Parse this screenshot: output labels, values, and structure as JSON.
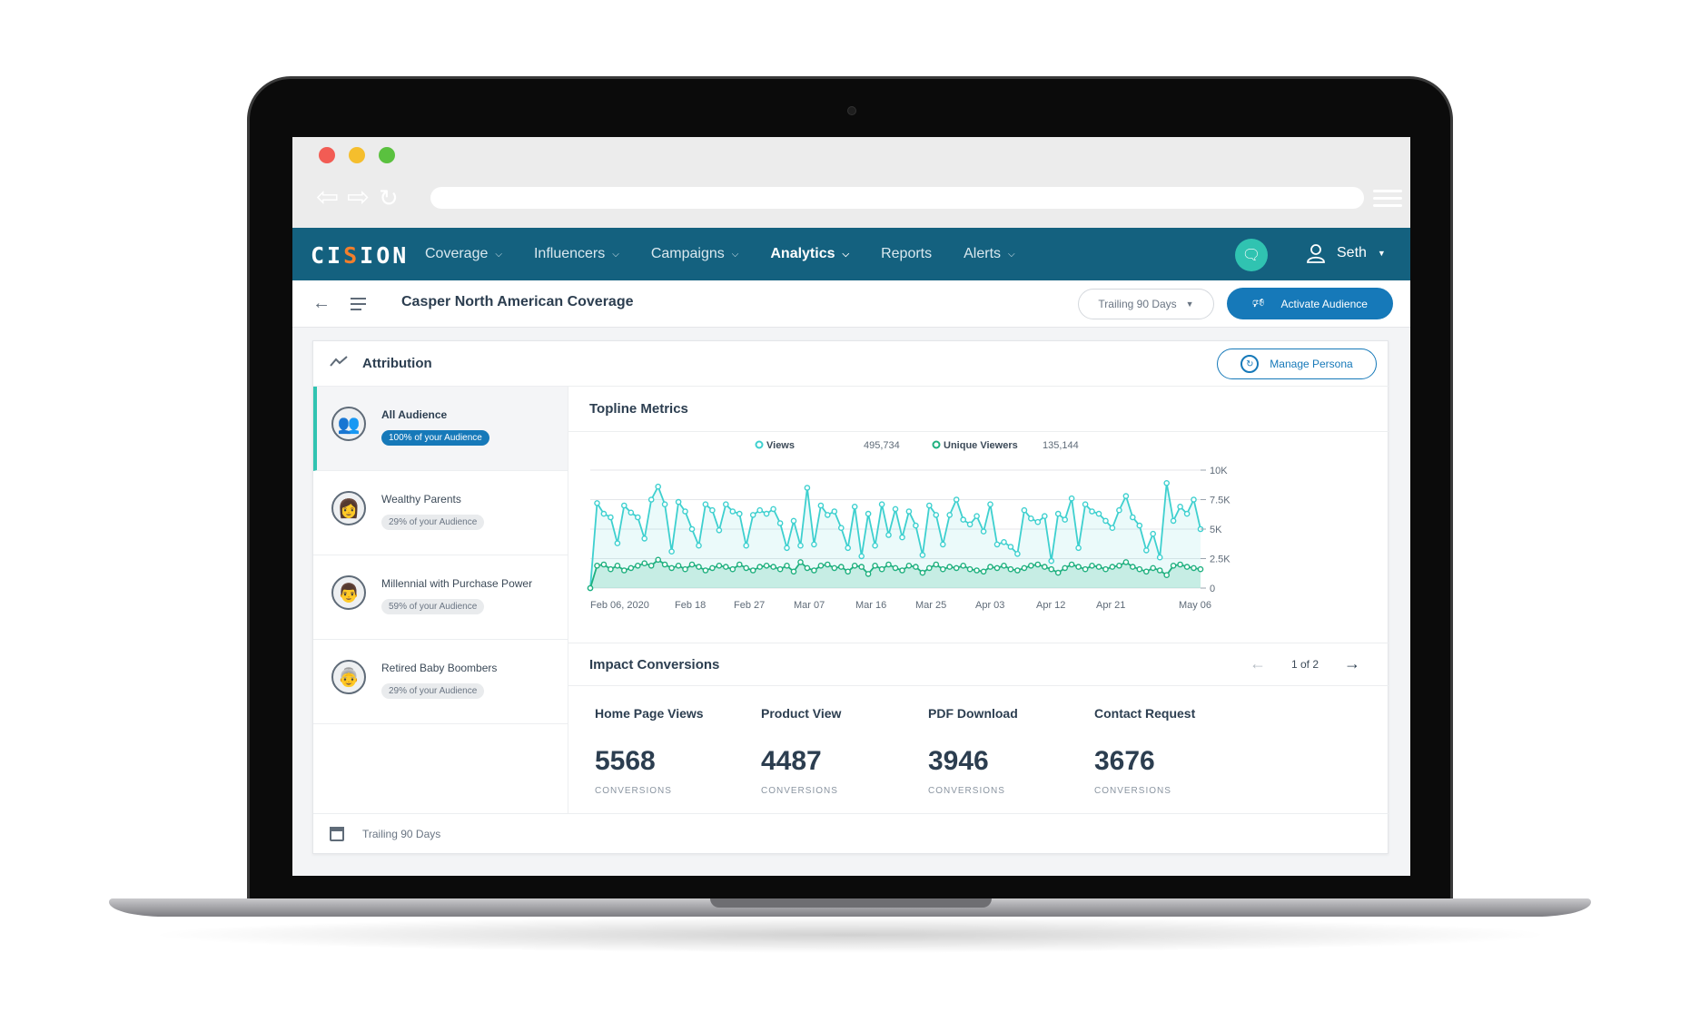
{
  "app": {
    "logo": {
      "part1": "CI",
      "part2": "S",
      "part3": "ION"
    },
    "nav": [
      {
        "label": "Coverage",
        "has_menu": true
      },
      {
        "label": "Influencers",
        "has_menu": true
      },
      {
        "label": "Campaigns",
        "has_menu": true
      },
      {
        "label": "Analytics",
        "has_menu": true,
        "active": true
      },
      {
        "label": "Reports",
        "has_menu": false
      },
      {
        "label": "Alerts",
        "has_menu": true
      }
    ],
    "user_name": "Seth",
    "colors": {
      "topbar": "#14617f",
      "accent": "#30c3b1",
      "primary": "#1679b9",
      "logo_accent": "#f37f2c"
    }
  },
  "subheader": {
    "title": "Casper North American Coverage",
    "range": "Trailing 90 Days",
    "activate_label": "Activate Audience"
  },
  "attribution": {
    "title": "Attribution",
    "manage_label": "Manage Persona",
    "audiences": [
      {
        "name": "All Audience",
        "share": "100% of your Audience",
        "active": true
      },
      {
        "name": "Wealthy Parents",
        "share": "29% of your Audience"
      },
      {
        "name": "Millennial with Purchase Power",
        "share": "59% of your Audience"
      },
      {
        "name": "Retired Baby Boombers",
        "share": "29% of your Audience"
      }
    ],
    "footer": "Trailing 90 Days"
  },
  "topline": {
    "title": "Topline Metrics",
    "legend": [
      {
        "name": "Views",
        "total": "495,734",
        "color": "#3ed0cf"
      },
      {
        "name": "Unique Viewers",
        "total": "135,144",
        "color": "#1fb07f"
      }
    ]
  },
  "chart_data": {
    "type": "line",
    "x_ticks": [
      "Feb 06, 2020",
      "Feb 18",
      "Feb 27",
      "Mar 07",
      "Mar 16",
      "Mar 25",
      "Apr 03",
      "Apr 12",
      "Apr 21",
      "May 06"
    ],
    "y_ticks": [
      "0",
      "2.5K",
      "5K",
      "7.5K",
      "10K"
    ],
    "ylim": [
      0,
      10000
    ],
    "x_range": [
      "Feb 06, 2020",
      "May 06"
    ],
    "series": [
      {
        "name": "Views",
        "color": "#3ed0cf",
        "area": true,
        "values": [
          0,
          7200,
          6300,
          6000,
          3800,
          7000,
          6400,
          6000,
          4200,
          7500,
          8600,
          7100,
          3100,
          7300,
          6500,
          5000,
          3600,
          7100,
          6600,
          4900,
          7100,
          6500,
          6300,
          3600,
          6200,
          6600,
          6300,
          6700,
          5500,
          3400,
          5700,
          3600,
          8500,
          3700,
          7000,
          6200,
          6500,
          5100,
          3400,
          6900,
          2700,
          6300,
          3600,
          7100,
          4500,
          6700,
          4300,
          6500,
          5300,
          2800,
          7000,
          6200,
          3700,
          6200,
          7500,
          5800,
          5400,
          6100,
          4800,
          7100,
          3700,
          3900,
          3500,
          2900,
          6600,
          5900,
          5600,
          6100,
          2300,
          6300,
          5800,
          7600,
          3400,
          7100,
          6500,
          6300,
          5700,
          5100,
          6600,
          7800,
          6000,
          5300,
          3200,
          4600,
          2600,
          8900,
          5700,
          6900,
          6300,
          7500,
          5000
        ]
      },
      {
        "name": "Unique Viewers",
        "color": "#1fb07f",
        "area": true,
        "values": [
          0,
          1900,
          2000,
          1600,
          1900,
          1500,
          1700,
          1900,
          2100,
          1900,
          2400,
          2000,
          1700,
          1900,
          1600,
          2000,
          1800,
          1500,
          1700,
          1900,
          1800,
          1600,
          2000,
          1700,
          1500,
          1800,
          1900,
          1800,
          1600,
          1900,
          1400,
          2200,
          1700,
          1500,
          1900,
          2000,
          1700,
          1800,
          1400,
          1900,
          1800,
          1200,
          1900,
          1600,
          2000,
          1700,
          1500,
          1900,
          1800,
          1300,
          1700,
          2000,
          1600,
          1800,
          1700,
          1900,
          1600,
          1500,
          1400,
          1800,
          1700,
          1900,
          1600,
          1500,
          1700,
          1900,
          2000,
          1800,
          1600,
          1300,
          1700,
          2000,
          1800,
          1600,
          1900,
          1800,
          1600,
          1800,
          1900,
          2200,
          1800,
          1600,
          1400,
          1700,
          1500,
          1100,
          1900,
          2000,
          1800,
          1700,
          1600
        ]
      }
    ]
  },
  "impact": {
    "title": "Impact Conversions",
    "pager": "1 of 2",
    "items": [
      {
        "label": "Home Page Views",
        "value": "5568",
        "unit": "CONVERSIONS"
      },
      {
        "label": "Product View",
        "value": "4487",
        "unit": "CONVERSIONS"
      },
      {
        "label": "PDF Download",
        "value": "3946",
        "unit": "CONVERSIONS"
      },
      {
        "label": "Contact Request",
        "value": "3676",
        "unit": "CONVERSIONS"
      }
    ]
  }
}
